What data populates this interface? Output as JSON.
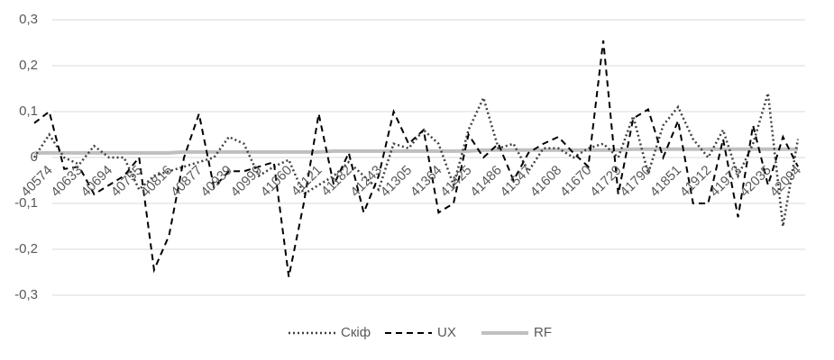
{
  "chart_data": {
    "type": "line",
    "categories": [
      "40574",
      null,
      "40633",
      null,
      "40694",
      null,
      "40755",
      null,
      "40816",
      null,
      "40877",
      null,
      "40939",
      null,
      "40999",
      null,
      "41060",
      null,
      "41121",
      null,
      "41182",
      null,
      "41243",
      null,
      "41305",
      null,
      "41364",
      null,
      "41425",
      null,
      "41486",
      null,
      "41547",
      null,
      "41608",
      null,
      "41670",
      null,
      "41729",
      null,
      "41790",
      null,
      "41851",
      null,
      "41912",
      null,
      "41973",
      null,
      "42035",
      null,
      "42094",
      null
    ],
    "series": [
      {
        "name": "Скіф",
        "color": "#404040",
        "dash": "dotted",
        "values": [
          0,
          0.05,
          0,
          -0.015,
          0.025,
          0,
          0,
          -0.07,
          -0.04,
          -0.03,
          -0.02,
          -0.01,
          0,
          0.045,
          0.03,
          -0.04,
          -0.02,
          -0.005,
          -0.08,
          -0.06,
          -0.04,
          -0.01,
          -0.04,
          -0.07,
          0.03,
          0.02,
          0.06,
          0.03,
          -0.06,
          0.06,
          0.13,
          0.02,
          0.03,
          -0.03,
          0.02,
          0.02,
          0,
          0.02,
          0.03,
          0,
          0.09,
          -0.035,
          0.07,
          0.11,
          0.04,
          0,
          0.06,
          -0.04,
          0.03,
          0.14,
          -0.15,
          0.04
        ]
      },
      {
        "name": "UX",
        "color": "#000000",
        "dash": "dashed",
        "values": [
          0.075,
          0.1,
          -0.025,
          -0.02,
          -0.08,
          -0.06,
          -0.04,
          0,
          -0.245,
          -0.17,
          0,
          0.095,
          -0.065,
          -0.03,
          -0.03,
          -0.02,
          -0.01,
          -0.26,
          -0.1,
          0.095,
          -0.06,
          0.01,
          -0.12,
          -0.04,
          0.1,
          0.03,
          0.06,
          -0.12,
          -0.1,
          0.05,
          0,
          0.03,
          -0.05,
          0.01,
          0.03,
          0.045,
          0.01,
          -0.02,
          0.255,
          -0.08,
          0.085,
          0.105,
          0,
          0.08,
          -0.1,
          -0.1,
          0.04,
          -0.13,
          0.07,
          -0.06,
          0.045,
          -0.02
        ]
      },
      {
        "name": "RF",
        "color": "#bfbfbf",
        "dash": "solid",
        "values": [
          0.01,
          0.01,
          0.01,
          0.01,
          0.01,
          0.01,
          0.01,
          0.01,
          0.01,
          0.01,
          0.012,
          0.012,
          0.012,
          0.012,
          0.012,
          0.012,
          0.012,
          0.012,
          0.012,
          0.012,
          0.014,
          0.014,
          0.014,
          0.014,
          0.014,
          0.014,
          0.014,
          0.014,
          0.014,
          0.014,
          0.016,
          0.016,
          0.016,
          0.016,
          0.016,
          0.016,
          0.016,
          0.016,
          0.016,
          0.016,
          0.018,
          0.018,
          0.018,
          0.018,
          0.018,
          0.018,
          0.018,
          0.018,
          0.018,
          0.018,
          0.018,
          0.018
        ]
      }
    ],
    "ylim": [
      -0.3,
      0.3
    ],
    "yticks": [
      {
        "value": -0.3,
        "label": "-0,3"
      },
      {
        "value": -0.2,
        "label": "-0,2"
      },
      {
        "value": -0.1,
        "label": "-0,1"
      },
      0,
      {
        "value": 0.1,
        "label": "0,1"
      },
      {
        "value": 0.2,
        "label": "0,2"
      },
      {
        "value": 0.3,
        "label": "0,3"
      }
    ],
    "grid": true,
    "legend": "bottom"
  }
}
